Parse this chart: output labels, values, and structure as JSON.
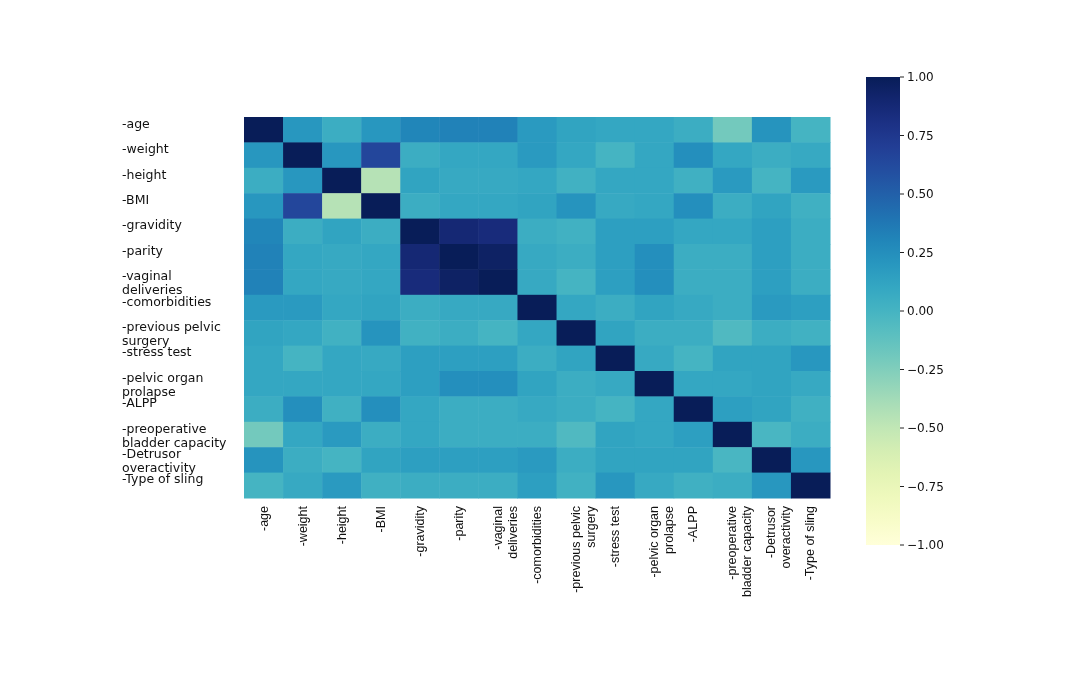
{
  "chart_data": {
    "type": "heatmap",
    "categories": [
      "-age",
      "-weight",
      "-height",
      "-BMI",
      "-gravidity",
      "-parity",
      "-vaginal deliveries",
      "-comorbidities",
      "-previous pelvic surgery",
      "-stress test",
      "-pelvic organ prolapse",
      "-ALPP",
      "-preoperative bladder capacity",
      "-Detrusor overactivity",
      "-Type of sling"
    ],
    "y_categories": [
      "-age",
      "-weight",
      "-height",
      "-BMI",
      "-gravidity",
      "-parity",
      "-vaginal deliveries",
      "-comorbidities",
      "-previous pelvic surgery",
      "-stress test",
      "-pelvic organ prolapse",
      "-ALPP",
      "-preoperative bladder capacity",
      "-Detrusor overactivity",
      "-Type of sling"
    ],
    "cells": [
      [
        1,
        0.2,
        0.05,
        0.2,
        0.3,
        0.32,
        0.32,
        0.18,
        0.12,
        0.1,
        0.1,
        0.05,
        -0.2,
        0.22,
        0
      ],
      [
        0.2,
        1,
        0.2,
        0.65,
        0.05,
        0.1,
        0.1,
        0.18,
        0.1,
        0,
        0.1,
        0.25,
        0.1,
        0.05,
        0.08
      ],
      [
        0.05,
        0.2,
        1,
        -0.45,
        0.12,
        0.08,
        0.08,
        0.1,
        0.02,
        0.1,
        0.1,
        0.03,
        0.18,
        0,
        0.18
      ],
      [
        0.2,
        0.65,
        -0.45,
        1,
        0.05,
        0.1,
        0.1,
        0.12,
        0.22,
        0.08,
        0.1,
        0.25,
        0.05,
        0.12,
        0.03
      ],
      [
        0.3,
        0.05,
        0.12,
        0.05,
        1,
        0.88,
        0.85,
        0.05,
        0.02,
        0.15,
        0.15,
        0.1,
        0.1,
        0.15,
        0.05
      ],
      [
        0.32,
        0.1,
        0.08,
        0.1,
        0.88,
        1,
        0.95,
        0.08,
        0.05,
        0.15,
        0.25,
        0.05,
        0.05,
        0.15,
        0.05
      ],
      [
        0.32,
        0.1,
        0.08,
        0.1,
        0.85,
        0.95,
        1,
        0.08,
        0,
        0.15,
        0.25,
        0.05,
        0.05,
        0.15,
        0.05
      ],
      [
        0.18,
        0.18,
        0.1,
        0.12,
        0.05,
        0.08,
        0.08,
        1,
        0.1,
        0.05,
        0.12,
        0.08,
        0.05,
        0.18,
        0.15
      ],
      [
        0.12,
        0.1,
        0.02,
        0.22,
        0.02,
        0.05,
        0,
        0.1,
        1,
        0.12,
        0.05,
        0.05,
        -0.05,
        0.05,
        0.02
      ],
      [
        0.1,
        0,
        0.1,
        0.08,
        0.15,
        0.15,
        0.15,
        0.05,
        0.12,
        1,
        0.08,
        0,
        0.12,
        0.12,
        0.2
      ],
      [
        0.1,
        0.1,
        0.1,
        0.1,
        0.15,
        0.25,
        0.25,
        0.12,
        0.05,
        0.08,
        1,
        0.1,
        0.1,
        0.12,
        0.08
      ],
      [
        0.05,
        0.25,
        0.03,
        0.25,
        0.1,
        0.05,
        0.05,
        0.08,
        0.05,
        0,
        0.1,
        1,
        0.15,
        0.12,
        0.03
      ],
      [
        -0.2,
        0.1,
        0.18,
        0.05,
        0.1,
        0.05,
        0.05,
        0.05,
        -0.05,
        0.12,
        0.1,
        0.15,
        1,
        -0.02,
        0.05
      ],
      [
        0.22,
        0.05,
        0,
        0.12,
        0.15,
        0.15,
        0.15,
        0.18,
        0.05,
        0.12,
        0.12,
        0.12,
        -0.02,
        1,
        0.2
      ],
      [
        0,
        0.08,
        0.18,
        0.03,
        0.05,
        0.05,
        0.05,
        0.15,
        0.02,
        0.2,
        0.08,
        0.03,
        0.05,
        0.2,
        1
      ]
    ],
    "clim": [
      -1,
      1
    ],
    "cticks": [
      {
        "value": 1,
        "label": "1.00"
      },
      {
        "value": 0.75,
        "label": "0.75"
      },
      {
        "value": 0.5,
        "label": "0.50"
      },
      {
        "value": 0.25,
        "label": "0.25"
      },
      {
        "value": 0,
        "label": "0.00"
      },
      {
        "value": -0.25,
        "label": "−0.25"
      },
      {
        "value": -0.5,
        "label": "−0.50"
      },
      {
        "value": -0.75,
        "label": "−0.75"
      },
      {
        "value": -1,
        "label": "−1.00"
      }
    ]
  }
}
